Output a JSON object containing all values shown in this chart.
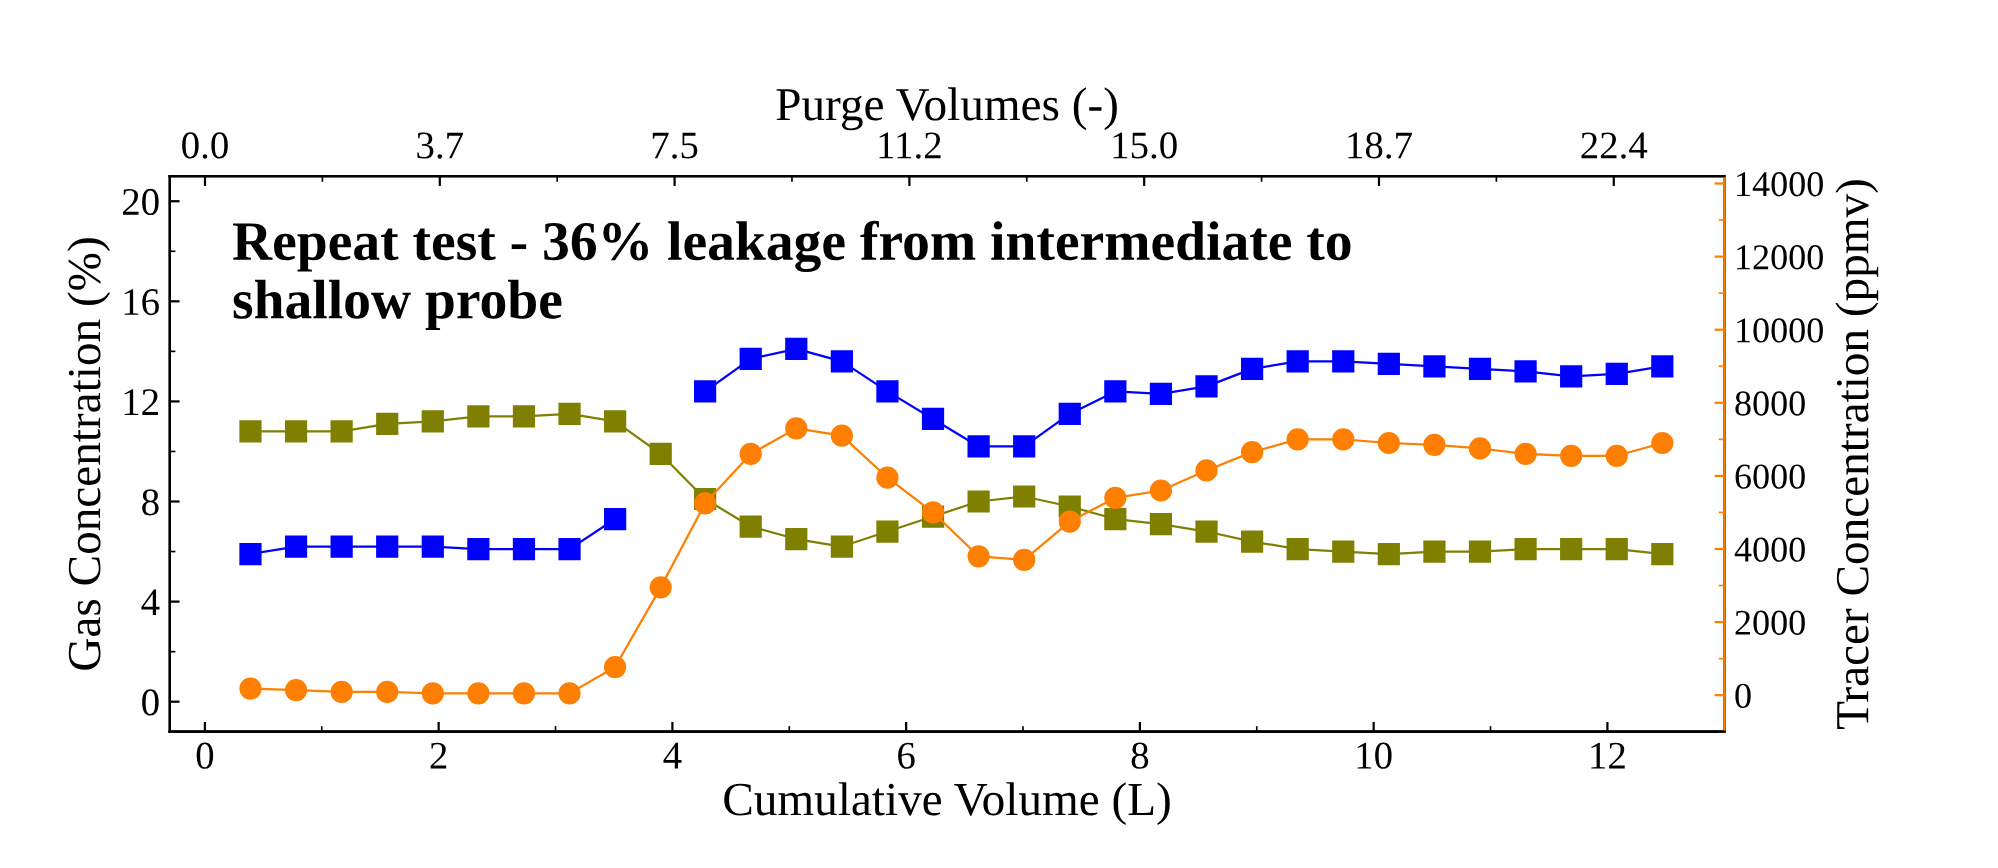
{
  "chart_data": {
    "type": "line",
    "xlabel": "Cumulative Volume (L)",
    "ylabel": "Gas Concentration (%)",
    "y2label": "Tracer Concentration (ppmv)",
    "x2label": "Purge Volumes (-)",
    "annotations": [
      "Repeat test - 36% leakage from intermediate to\nshallow probe"
    ],
    "x": [
      0.39,
      0.78,
      1.17,
      1.56,
      1.95,
      2.34,
      2.73,
      3.12,
      3.51,
      3.9,
      4.28,
      4.67,
      5.06,
      5.45,
      5.84,
      6.23,
      6.62,
      7.01,
      7.4,
      7.79,
      8.18,
      8.57,
      8.96,
      9.35,
      9.74,
      10.13,
      10.52,
      10.91,
      11.3,
      11.69,
      12.08,
      12.47
    ],
    "series": [
      {
        "color": "#0000ff",
        "marker": "square",
        "values": [
          5.9,
          6.2,
          6.2,
          6.2,
          6.2,
          6.1,
          6.1,
          6.1,
          7.3,
          null,
          12.4,
          13.7,
          14.1,
          13.6,
          12.4,
          11.3,
          10.2,
          10.2,
          11.5,
          12.4,
          12.3,
          12.6,
          13.3,
          13.6,
          13.6,
          13.5,
          13.4,
          13.3,
          13.2,
          13.0,
          13.1,
          13.4
        ]
      },
      {
        "color": "#808000",
        "marker": "square",
        "values": [
          10.8,
          10.8,
          10.8,
          11.1,
          11.2,
          11.4,
          11.4,
          11.5,
          11.2,
          9.9,
          8.1,
          7.0,
          6.5,
          6.2,
          6.8,
          7.4,
          8.0,
          8.2,
          7.8,
          7.3,
          7.1,
          6.8,
          6.4,
          6.1,
          6.0,
          5.9,
          6.0,
          6.0,
          6.1,
          6.1,
          6.1,
          5.9
        ]
      },
      {
        "color": "#ff7f00",
        "marker": "circle",
        "axis": "y2",
        "values": [
          180,
          140,
          90,
          90,
          50,
          50,
          50,
          50,
          770,
          2950,
          5250,
          6600,
          7300,
          7100,
          5950,
          5000,
          3800,
          3700,
          4750,
          5400,
          5600,
          6150,
          6650,
          7000,
          7000,
          6900,
          6850,
          6750,
          6600,
          6550,
          6550,
          6900
        ]
      }
    ],
    "xlim": [
      -0.3,
      13
    ],
    "xticks": [
      0,
      2,
      4,
      6,
      8,
      10,
      12
    ],
    "x2lim": [
      -0.56,
      24.2
    ],
    "x2ticks": [
      {
        "value": 0,
        "label": "0.0"
      },
      {
        "value": 3.74,
        "label": "3.7"
      },
      {
        "value": 7.48,
        "label": "7.5"
      },
      {
        "value": 11.22,
        "label": "11.2"
      },
      {
        "value": 14.96,
        "label": "15.0"
      },
      {
        "value": 18.7,
        "label": "18.7"
      },
      {
        "value": 22.44,
        "label": "22.4"
      }
    ],
    "ylim": [
      -1.2,
      21
    ],
    "yticks": [
      0,
      4,
      8,
      12,
      16,
      20
    ],
    "y2lim": [
      -1000,
      14200
    ],
    "y2ticks": [
      0,
      2000,
      4000,
      6000,
      8000,
      10000,
      12000,
      14000
    ],
    "line_style": "solid",
    "grid": false
  }
}
